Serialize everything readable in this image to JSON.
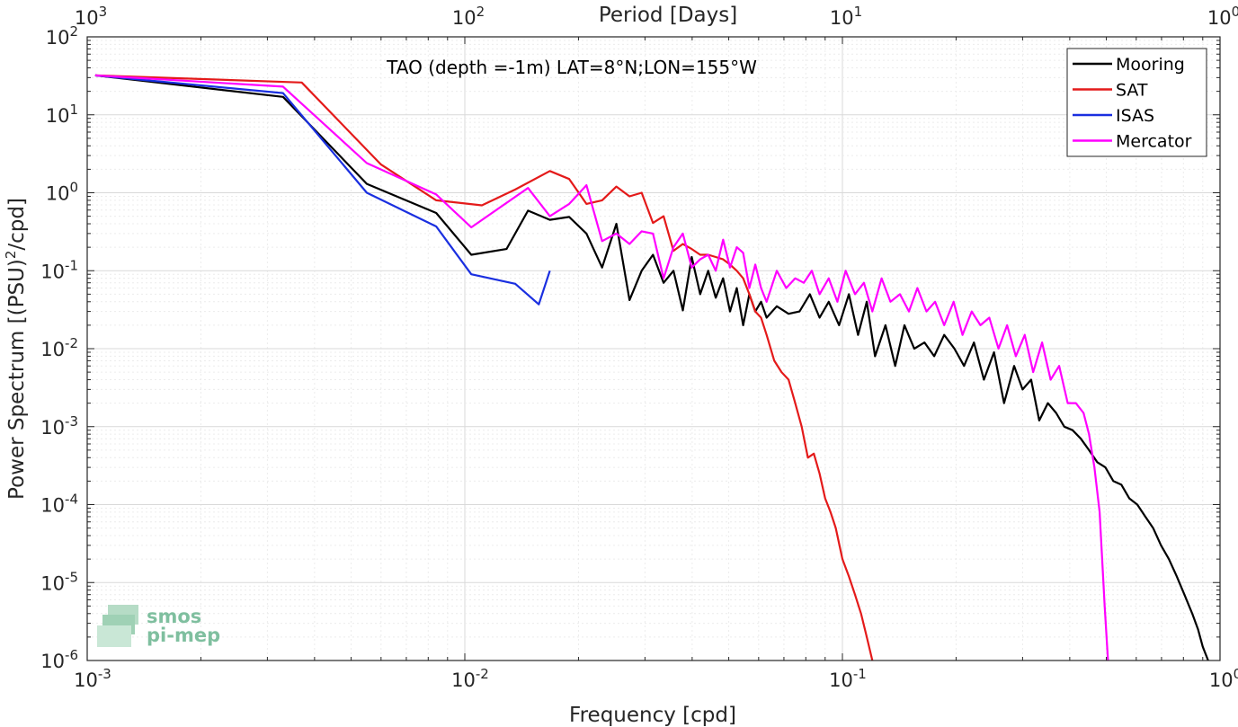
{
  "chart_data": {
    "type": "line",
    "title": "TAO (depth =-1m) LAT=8°N;LON=155°W",
    "xlabel": "Frequency [cpd]",
    "ylabel": "Power Spectrum [(PSU)²/cpd]",
    "top_xlabel": "Period [Days]",
    "xscale": "log",
    "yscale": "log",
    "xlim": [
      0.001,
      1
    ],
    "ylim": [
      1e-06,
      100
    ],
    "grid": true,
    "legend_position": "top-right",
    "x_tick_labels": [
      {
        "base": "10",
        "exp": "-3"
      },
      {
        "base": "10",
        "exp": "-2"
      },
      {
        "base": "10",
        "exp": "-1"
      },
      {
        "base": "10",
        "exp": "0"
      }
    ],
    "y_tick_labels": [
      {
        "base": "10",
        "exp": "-6"
      },
      {
        "base": "10",
        "exp": "-5"
      },
      {
        "base": "10",
        "exp": "-4"
      },
      {
        "base": "10",
        "exp": "-3"
      },
      {
        "base": "10",
        "exp": "-2"
      },
      {
        "base": "10",
        "exp": "-1"
      },
      {
        "base": "10",
        "exp": "0"
      },
      {
        "base": "10",
        "exp": "1"
      },
      {
        "base": "10",
        "exp": "2"
      }
    ],
    "top_tick_labels": [
      {
        "base": "10",
        "exp": "3"
      },
      {
        "base": "10",
        "exp": "2"
      },
      {
        "base": "10",
        "exp": "1"
      },
      {
        "base": "10",
        "exp": "0"
      }
    ],
    "series": [
      {
        "name": "Mooring",
        "color": "#000000",
        "x": [
          0.00105,
          0.0033,
          0.0055,
          0.0084,
          0.0104,
          0.0129,
          0.0147,
          0.0168,
          0.0189,
          0.021,
          0.0231,
          0.0252,
          0.0273,
          0.0294,
          0.0315,
          0.0336,
          0.0357,
          0.0378,
          0.0399,
          0.042,
          0.0441,
          0.0462,
          0.0483,
          0.0504,
          0.0525,
          0.0546,
          0.0567,
          0.0588,
          0.0609,
          0.063,
          0.067,
          0.072,
          0.077,
          0.082,
          0.087,
          0.092,
          0.098,
          0.104,
          0.11,
          0.116,
          0.122,
          0.13,
          0.138,
          0.146,
          0.155,
          0.165,
          0.175,
          0.186,
          0.198,
          0.21,
          0.223,
          0.237,
          0.252,
          0.268,
          0.285,
          0.3,
          0.316,
          0.332,
          0.35,
          0.368,
          0.387,
          0.407,
          0.428,
          0.45,
          0.473,
          0.497,
          0.522,
          0.548,
          0.575,
          0.604,
          0.634,
          0.665,
          0.698,
          0.732,
          0.768,
          0.805,
          0.844,
          0.875,
          0.9,
          0.93
        ],
        "y": [
          32,
          17,
          1.3,
          0.55,
          0.16,
          0.19,
          0.59,
          0.45,
          0.49,
          0.3,
          0.11,
          0.4,
          0.042,
          0.1,
          0.16,
          0.07,
          0.1,
          0.031,
          0.15,
          0.05,
          0.1,
          0.045,
          0.08,
          0.03,
          0.06,
          0.02,
          0.05,
          0.03,
          0.04,
          0.025,
          0.035,
          0.028,
          0.03,
          0.05,
          0.025,
          0.04,
          0.02,
          0.05,
          0.015,
          0.04,
          0.008,
          0.02,
          0.006,
          0.02,
          0.01,
          0.012,
          0.008,
          0.015,
          0.01,
          0.006,
          0.012,
          0.004,
          0.009,
          0.002,
          0.006,
          0.003,
          0.004,
          0.0012,
          0.002,
          0.0015,
          0.001,
          0.0009,
          0.0007,
          0.0005,
          0.00035,
          0.0003,
          0.0002,
          0.00018,
          0.00012,
          0.0001,
          7e-05,
          5e-05,
          3e-05,
          2e-05,
          1.2e-05,
          7e-06,
          4e-06,
          2.5e-06,
          1.5e-06,
          1e-06
        ]
      },
      {
        "name": "SAT",
        "color": "#e41a1a",
        "x": [
          0.00105,
          0.0037,
          0.006,
          0.0084,
          0.0111,
          0.0136,
          0.0168,
          0.0189,
          0.021,
          0.0231,
          0.0252,
          0.0273,
          0.0294,
          0.0315,
          0.0336,
          0.0357,
          0.0378,
          0.0399,
          0.042,
          0.0441,
          0.0462,
          0.0483,
          0.0504,
          0.0525,
          0.0546,
          0.0567,
          0.0588,
          0.0609,
          0.063,
          0.066,
          0.069,
          0.072,
          0.075,
          0.078,
          0.081,
          0.084,
          0.087,
          0.09,
          0.093,
          0.096,
          0.1,
          0.104,
          0.108,
          0.112,
          0.116,
          0.12
        ],
        "y": [
          32,
          26,
          2.3,
          0.8,
          0.69,
          1.1,
          1.9,
          1.5,
          0.72,
          0.8,
          1.2,
          0.9,
          1.0,
          0.41,
          0.5,
          0.18,
          0.22,
          0.19,
          0.16,
          0.16,
          0.15,
          0.14,
          0.12,
          0.1,
          0.08,
          0.05,
          0.03,
          0.025,
          0.015,
          0.007,
          0.005,
          0.004,
          0.002,
          0.001,
          0.0004,
          0.00045,
          0.00025,
          0.00012,
          8e-05,
          5e-05,
          2e-05,
          1.2e-05,
          7e-06,
          4e-06,
          2e-06,
          1e-06
        ]
      },
      {
        "name": "ISAS",
        "color": "#1a2fe0",
        "x": [
          0.00105,
          0.0033,
          0.0055,
          0.0084,
          0.0104,
          0.0136,
          0.0157,
          0.0168
        ],
        "y": [
          32,
          19,
          1.0,
          0.37,
          0.09,
          0.068,
          0.037,
          0.1
        ]
      },
      {
        "name": "Mercator",
        "color": "#ff00ff",
        "x": [
          0.00105,
          0.0033,
          0.0055,
          0.0084,
          0.0104,
          0.0147,
          0.0168,
          0.0189,
          0.021,
          0.0231,
          0.0252,
          0.0273,
          0.0294,
          0.0315,
          0.0336,
          0.0357,
          0.0378,
          0.0399,
          0.042,
          0.0441,
          0.0462,
          0.0483,
          0.0504,
          0.0525,
          0.0546,
          0.0567,
          0.0588,
          0.0609,
          0.063,
          0.067,
          0.071,
          0.075,
          0.079,
          0.083,
          0.087,
          0.092,
          0.097,
          0.102,
          0.108,
          0.114,
          0.12,
          0.127,
          0.134,
          0.142,
          0.15,
          0.158,
          0.167,
          0.176,
          0.186,
          0.197,
          0.208,
          0.22,
          0.232,
          0.245,
          0.259,
          0.273,
          0.288,
          0.304,
          0.32,
          0.338,
          0.356,
          0.375,
          0.395,
          0.415,
          0.435,
          0.45,
          0.465,
          0.48,
          0.495,
          0.505
        ],
        "y": [
          32,
          23,
          2.4,
          0.95,
          0.36,
          1.15,
          0.5,
          0.72,
          1.25,
          0.24,
          0.3,
          0.22,
          0.32,
          0.3,
          0.08,
          0.2,
          0.3,
          0.11,
          0.14,
          0.16,
          0.1,
          0.25,
          0.11,
          0.2,
          0.17,
          0.06,
          0.12,
          0.06,
          0.04,
          0.1,
          0.06,
          0.08,
          0.07,
          0.1,
          0.05,
          0.08,
          0.04,
          0.1,
          0.05,
          0.07,
          0.03,
          0.08,
          0.04,
          0.05,
          0.03,
          0.06,
          0.03,
          0.04,
          0.02,
          0.04,
          0.015,
          0.03,
          0.02,
          0.025,
          0.01,
          0.02,
          0.008,
          0.015,
          0.005,
          0.012,
          0.004,
          0.006,
          0.002,
          0.002,
          0.0015,
          0.0008,
          0.0003,
          8e-05,
          5e-06,
          1e-06
        ]
      }
    ],
    "logo": {
      "line1": "smos",
      "line2": "pi-mep"
    }
  }
}
